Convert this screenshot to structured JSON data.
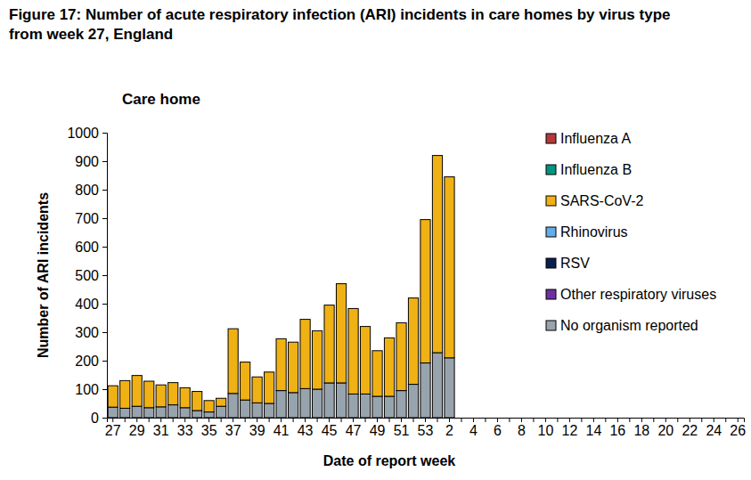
{
  "chart_data": {
    "type": "bar",
    "title": "Figure 17: Number of acute respiratory infection (ARI) incidents in care homes by virus type from week 27, England",
    "subtitle": "Care home",
    "x_label": "Date of report week",
    "y_label": "Number of ARI incidents",
    "categories": [
      27,
      null,
      29,
      null,
      31,
      null,
      33,
      null,
      35,
      null,
      37,
      null,
      39,
      null,
      41,
      null,
      43,
      null,
      45,
      null,
      47,
      null,
      49,
      null,
      51,
      null,
      53,
      null,
      2,
      null,
      4,
      null,
      6,
      null,
      8,
      null,
      10,
      null,
      12,
      null,
      14,
      null,
      16,
      null,
      18,
      null,
      20,
      null,
      22,
      null,
      24,
      null,
      26
    ],
    "series": [
      {
        "name": "Influenza A",
        "color": "#b23a3a",
        "values": [
          0,
          0,
          0,
          0,
          0,
          0,
          0,
          0,
          0,
          0,
          0,
          0,
          0,
          0,
          0,
          0,
          0,
          0,
          0,
          0,
          0,
          0,
          0,
          0,
          0,
          0,
          0,
          0,
          0,
          null,
          null,
          null,
          null,
          null,
          null,
          null,
          null,
          null,
          null,
          null,
          null,
          null,
          null,
          null,
          null,
          null,
          null,
          null,
          null,
          null,
          null,
          null,
          null
        ]
      },
      {
        "name": "Influenza B",
        "color": "#00957e",
        "values": [
          0,
          0,
          0,
          0,
          0,
          0,
          0,
          0,
          0,
          0,
          0,
          0,
          0,
          0,
          0,
          0,
          0,
          0,
          0,
          0,
          0,
          0,
          0,
          0,
          0,
          0,
          0,
          0,
          0,
          null,
          null,
          null,
          null,
          null,
          null,
          null,
          null,
          null,
          null,
          null,
          null,
          null,
          null,
          null,
          null,
          null,
          null,
          null,
          null,
          null,
          null,
          null,
          null
        ]
      },
      {
        "name": "SARS-CoV-2",
        "color": "#f0b114",
        "values": [
          75,
          97,
          108,
          93,
          77,
          78,
          70,
          67,
          40,
          28,
          227,
          133,
          91,
          110,
          182,
          177,
          243,
          205,
          273,
          348,
          300,
          237,
          160,
          205,
          238,
          303,
          503,
          692,
          635,
          null,
          null,
          null,
          null,
          null,
          null,
          null,
          null,
          null,
          null,
          null,
          null,
          null,
          null,
          null,
          null,
          null,
          null,
          null,
          null,
          null,
          null,
          null,
          null
        ]
      },
      {
        "name": "Rhinovirus",
        "color": "#63aee8",
        "values": [
          0,
          0,
          0,
          0,
          0,
          0,
          0,
          0,
          0,
          0,
          0,
          0,
          0,
          0,
          0,
          0,
          0,
          0,
          0,
          0,
          0,
          0,
          0,
          0,
          0,
          0,
          0,
          0,
          0,
          null,
          null,
          null,
          null,
          null,
          null,
          null,
          null,
          null,
          null,
          null,
          null,
          null,
          null,
          null,
          null,
          null,
          null,
          null,
          null,
          null,
          null,
          null,
          null
        ]
      },
      {
        "name": "RSV",
        "color": "#0b1f4f",
        "values": [
          0,
          0,
          0,
          0,
          0,
          0,
          0,
          0,
          0,
          0,
          0,
          0,
          0,
          0,
          0,
          0,
          0,
          0,
          0,
          0,
          0,
          0,
          0,
          0,
          0,
          0,
          0,
          0,
          0,
          null,
          null,
          null,
          null,
          null,
          null,
          null,
          null,
          null,
          null,
          null,
          null,
          null,
          null,
          null,
          null,
          null,
          null,
          null,
          null,
          null,
          null,
          null,
          null
        ]
      },
      {
        "name": "Other respiratory viruses",
        "color": "#7030a0",
        "values": [
          0,
          0,
          0,
          0,
          0,
          0,
          0,
          0,
          0,
          0,
          0,
          0,
          0,
          0,
          0,
          0,
          0,
          0,
          0,
          0,
          0,
          0,
          0,
          0,
          0,
          0,
          0,
          0,
          0,
          null,
          null,
          null,
          null,
          null,
          null,
          null,
          null,
          null,
          null,
          null,
          null,
          null,
          null,
          null,
          null,
          null,
          null,
          null,
          null,
          null,
          null,
          null,
          null
        ]
      },
      {
        "name": "No organism reported",
        "color": "#98a4ad",
        "values": [
          37,
          33,
          40,
          35,
          38,
          45,
          35,
          25,
          20,
          40,
          85,
          62,
          52,
          50,
          95,
          88,
          102,
          100,
          122,
          122,
          83,
          83,
          75,
          75,
          95,
          117,
          192,
          228,
          210,
          null,
          null,
          null,
          null,
          null,
          null,
          null,
          null,
          null,
          null,
          null,
          null,
          null,
          null,
          null,
          null,
          null,
          null,
          null,
          null,
          null,
          null,
          null,
          null
        ]
      }
    ],
    "ylim": [
      0,
      1000
    ],
    "yticks": [
      0,
      100,
      200,
      300,
      400,
      500,
      600,
      700,
      800,
      900,
      1000
    ],
    "stacked": true,
    "legend": "right",
    "grid": false
  }
}
